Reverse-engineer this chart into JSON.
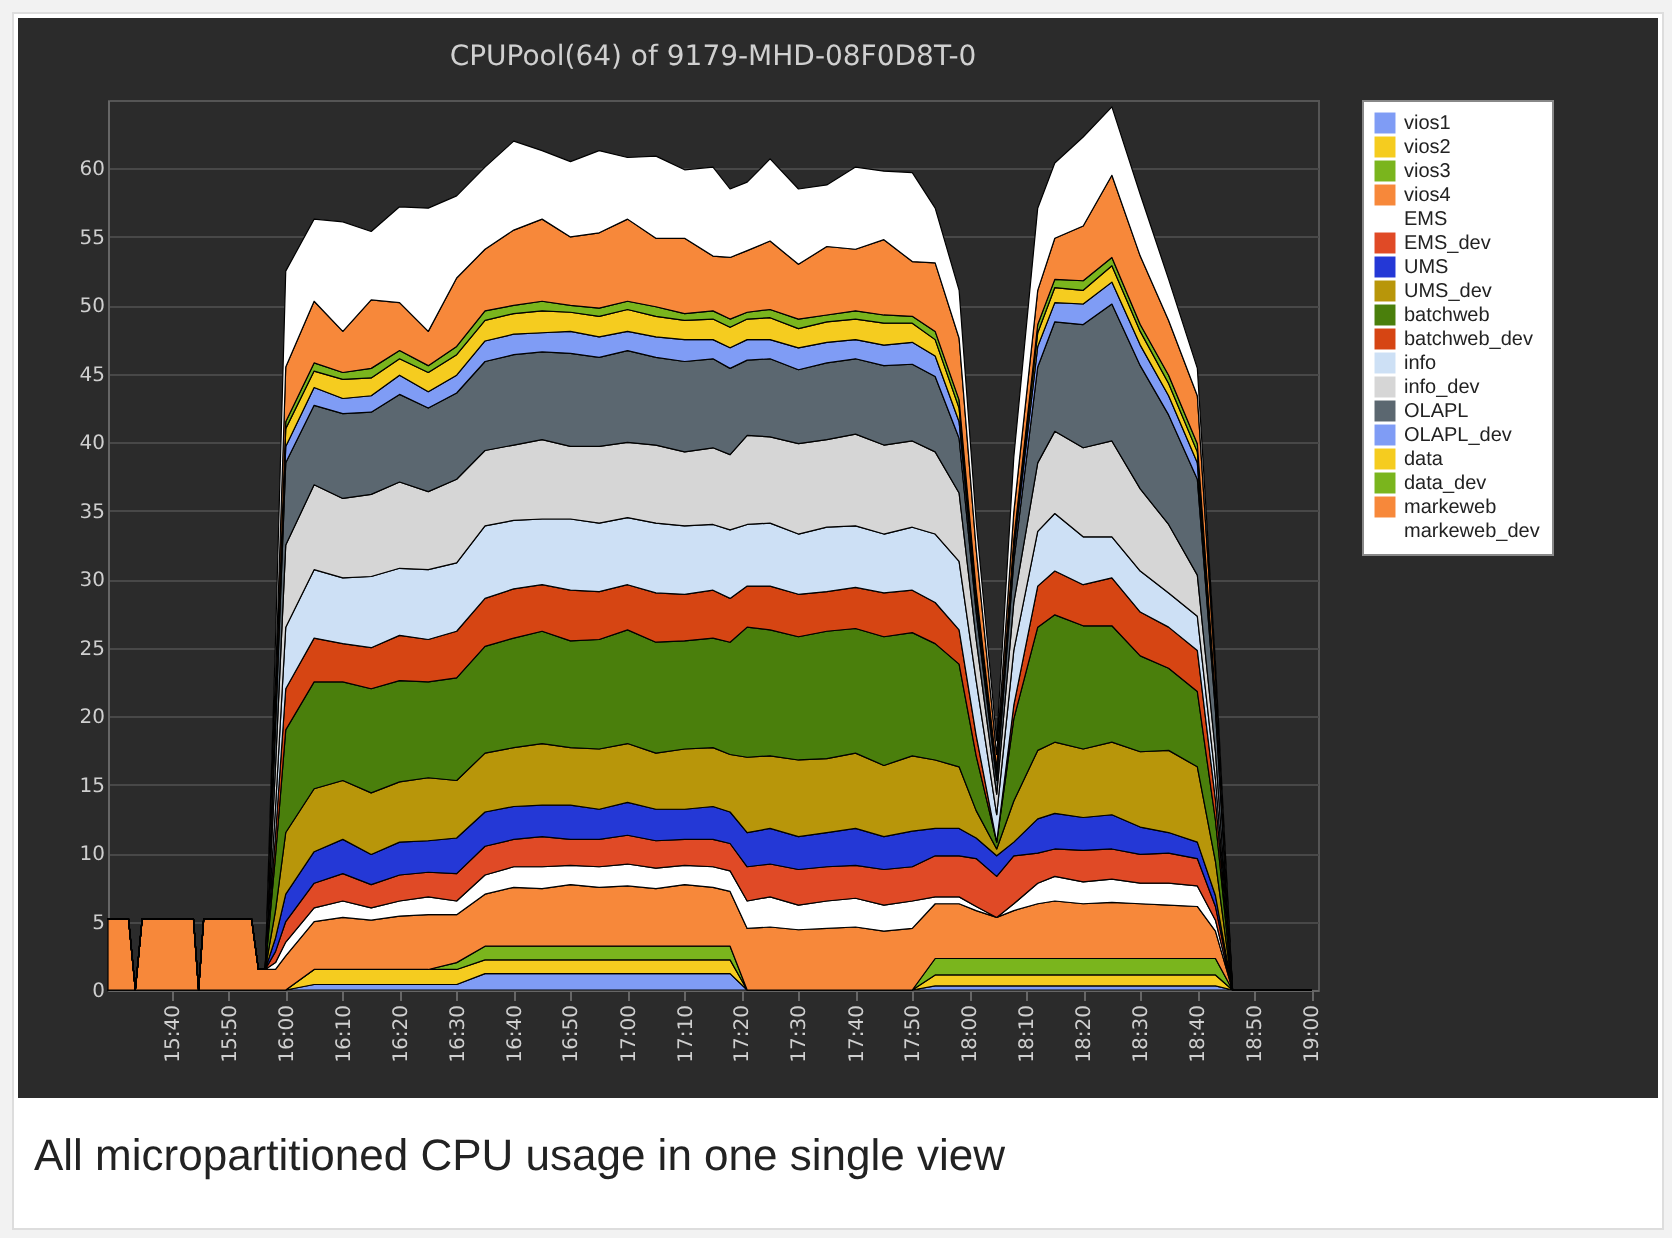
{
  "chart_data": {
    "type": "area",
    "stacked": true,
    "title": "CPUPool(64) of 9179-MHD-08F0D8T-0",
    "annotations": [
      "All micropartitioned CPU usage in one single view"
    ],
    "x": [
      15.48,
      15.54,
      15.56,
      15.58,
      15.73,
      15.745,
      15.76,
      15.9,
      15.92,
      15.94,
      15.97,
      16.0,
      16.083,
      16.167,
      16.25,
      16.333,
      16.417,
      16.5,
      16.583,
      16.667,
      16.75,
      16.833,
      16.917,
      17.0,
      17.083,
      17.167,
      17.25,
      17.3,
      17.35,
      17.417,
      17.5,
      17.583,
      17.667,
      17.75,
      17.833,
      17.9,
      17.97,
      18.02,
      18.08,
      18.13,
      18.2,
      18.25,
      18.333,
      18.417,
      18.5,
      18.583,
      18.667,
      18.72,
      18.77,
      19.0
    ],
    "xlim": [
      15.48,
      19.02
    ],
    "ylim": [
      0,
      65
    ],
    "xticks": [
      {
        "value": 15.667,
        "label": "15:40"
      },
      {
        "value": 15.833,
        "label": "15:50"
      },
      {
        "value": 16,
        "label": "16:00"
      },
      {
        "value": 16.167,
        "label": "16:10"
      },
      {
        "value": 16.333,
        "label": "16:20"
      },
      {
        "value": 16.5,
        "label": "16:30"
      },
      {
        "value": 16.667,
        "label": "16:40"
      },
      {
        "value": 16.833,
        "label": "16:50"
      },
      {
        "value": 17,
        "label": "17:00"
      },
      {
        "value": 17.167,
        "label": "17:10"
      },
      {
        "value": 17.333,
        "label": "17:20"
      },
      {
        "value": 17.5,
        "label": "17:30"
      },
      {
        "value": 17.667,
        "label": "17:40"
      },
      {
        "value": 17.833,
        "label": "17:50"
      },
      {
        "value": 18,
        "label": "18:00"
      },
      {
        "value": 18.167,
        "label": "18:10"
      },
      {
        "value": 18.333,
        "label": "18:20"
      },
      {
        "value": 18.5,
        "label": "18:30"
      },
      {
        "value": 18.667,
        "label": "18:40"
      },
      {
        "value": 18.833,
        "label": "18:50"
      },
      {
        "value": 19,
        "label": "19:00"
      }
    ],
    "yticks": [
      0,
      5,
      10,
      15,
      20,
      25,
      30,
      35,
      40,
      45,
      50,
      55,
      60
    ],
    "grid": "y",
    "legend": "right",
    "series": [
      {
        "name": "vios1",
        "color": "#7f9cf5",
        "values": [
          0,
          0,
          0,
          0,
          0,
          0,
          0,
          0,
          0,
          0,
          0,
          0,
          0.4,
          0.4,
          0.4,
          0.4,
          0.4,
          0.4,
          1.2,
          1.2,
          1.2,
          1.2,
          1.2,
          1.2,
          1.2,
          1.2,
          1.2,
          1.2,
          0,
          0,
          0,
          0,
          0,
          0,
          0,
          0.3,
          0.3,
          0.3,
          0.3,
          0.3,
          0.3,
          0.3,
          0.3,
          0.3,
          0.3,
          0.3,
          0.3,
          0.3,
          0,
          0
        ]
      },
      {
        "name": "vios2",
        "color": "#f5cc1f",
        "values": [
          0,
          0,
          0,
          0,
          0,
          0,
          0,
          0,
          0,
          0,
          0,
          0,
          1.1,
          1.1,
          1.1,
          1.1,
          1.1,
          1.1,
          1,
          1,
          1,
          1,
          1,
          1,
          1,
          1,
          1,
          1,
          0,
          0,
          0,
          0,
          0,
          0,
          0,
          0.8,
          0.8,
          0.8,
          0.8,
          0.8,
          0.8,
          0.8,
          0.8,
          0.8,
          0.8,
          0.8,
          0.8,
          0.8,
          0,
          0
        ]
      },
      {
        "name": "vios3",
        "color": "#7ab51d",
        "values": [
          0,
          0,
          0,
          0,
          0,
          0,
          0,
          0,
          0,
          0,
          0,
          0,
          0,
          0,
          0,
          0,
          0,
          0.5,
          1,
          1,
          1,
          1,
          1,
          1,
          1,
          1,
          1,
          1,
          0,
          0,
          0,
          0,
          0,
          0,
          0,
          1.2,
          1.2,
          1.2,
          1.2,
          1.2,
          1.2,
          1.2,
          1.2,
          1.2,
          1.2,
          1.2,
          1.2,
          1.2,
          0,
          0
        ]
      },
      {
        "name": "vios4",
        "color": "#f7883a",
        "values": [
          5.2,
          5.2,
          0,
          5.2,
          5.2,
          0,
          5.2,
          5.2,
          1.5,
          1.5,
          1.5,
          2.5,
          3.5,
          3.8,
          3.6,
          3.9,
          4,
          3.5,
          3.8,
          4.3,
          4.2,
          4.5,
          4.3,
          4.4,
          4.2,
          4.5,
          4.3,
          4,
          4.5,
          4.6,
          4.4,
          4.5,
          4.6,
          4.3,
          4.5,
          4,
          4,
          3.5,
          3,
          3.5,
          4,
          4.2,
          4,
          4.1,
          4,
          3.9,
          3.8,
          2,
          0,
          0
        ]
      },
      {
        "name": "EMS",
        "color": "#ffffff",
        "values": [
          0,
          0,
          0,
          0,
          0,
          0,
          0,
          0,
          0,
          0,
          0.5,
          1,
          1,
          1.2,
          0.9,
          1.1,
          1.3,
          1,
          1.4,
          1.5,
          1.6,
          1.4,
          1.5,
          1.6,
          1.5,
          1.4,
          1.5,
          1.5,
          2,
          2.2,
          1.8,
          2,
          2.1,
          1.9,
          2,
          0.5,
          0.5,
          0.3,
          0,
          0.5,
          1.5,
          1.8,
          1.6,
          1.7,
          1.5,
          1.6,
          1.5,
          0.8,
          0,
          0
        ]
      },
      {
        "name": "EMS_dev",
        "color": "#e04a26",
        "values": [
          0,
          0,
          0,
          0,
          0,
          0,
          0,
          0,
          0,
          0,
          0.8,
          1.5,
          1.8,
          2,
          1.7,
          1.9,
          1.8,
          2,
          2.1,
          2,
          2.2,
          1.9,
          2,
          2.1,
          2,
          1.9,
          2,
          2,
          2.5,
          2.4,
          2.6,
          2.5,
          2.4,
          2.6,
          2.5,
          3,
          3,
          3.5,
          3,
          3.5,
          2.2,
          2,
          2.3,
          2.2,
          2.1,
          2.2,
          2,
          1,
          0,
          0
        ]
      },
      {
        "name": "UMS",
        "color": "#2438d6",
        "values": [
          0,
          0,
          0,
          0,
          0,
          0,
          0,
          0,
          0,
          0,
          1,
          2,
          2.3,
          2.5,
          2.2,
          2.4,
          2.3,
          2.6,
          2.5,
          2.4,
          2.3,
          2.5,
          2.2,
          2.4,
          2.3,
          2.2,
          2.4,
          2.3,
          2.5,
          2.6,
          2.4,
          2.5,
          2.7,
          2.4,
          2.6,
          2,
          2,
          1.5,
          1.5,
          1,
          2.5,
          2.6,
          2.4,
          2.5,
          2,
          1.5,
          1.2,
          0.8,
          0,
          0
        ]
      },
      {
        "name": "UMS_dev",
        "color": "#b8960a",
        "values": [
          0,
          0,
          0,
          0,
          0,
          0,
          0,
          0,
          0,
          0,
          2,
          4.5,
          4.6,
          4.3,
          4.5,
          4.4,
          4.6,
          4.2,
          4.3,
          4.3,
          4.5,
          4.2,
          4.4,
          4.3,
          4.1,
          4.4,
          4.3,
          4.2,
          5.5,
          5.3,
          5.6,
          5.4,
          5.5,
          5.2,
          5.5,
          5,
          4.5,
          2,
          0.5,
          3,
          5,
          5.2,
          5,
          5.3,
          5.5,
          6,
          5.5,
          2.5,
          0,
          0
        ]
      },
      {
        "name": "batchweb",
        "color": "#4a7f0c",
        "values": [
          0,
          0,
          0,
          0,
          0,
          0,
          0,
          0,
          0,
          0,
          4,
          7.5,
          7.8,
          7.2,
          7.6,
          7.4,
          7,
          7.5,
          7.8,
          8,
          8.2,
          7.8,
          8,
          8.3,
          8.1,
          7.9,
          8,
          8.2,
          9.5,
          9.2,
          9,
          9.3,
          9.1,
          9.4,
          9,
          8.5,
          7.5,
          4,
          0.5,
          6,
          9,
          9.3,
          9,
          8.5,
          7,
          6,
          5.5,
          3,
          0,
          0
        ]
      },
      {
        "name": "batchweb_dev",
        "color": "#d64513",
        "values": [
          0,
          0,
          0,
          0,
          0,
          0,
          0,
          0,
          0,
          0,
          1.5,
          3,
          3.2,
          2.8,
          3,
          3.3,
          3.1,
          3.4,
          3.5,
          3.6,
          3.4,
          3.7,
          3.5,
          3.3,
          3.6,
          3.4,
          3.5,
          3.2,
          3,
          3.2,
          3.1,
          2.9,
          3,
          3.2,
          3.1,
          3,
          2.5,
          1.5,
          0,
          1,
          3,
          3.2,
          3,
          3.5,
          3.2,
          3,
          3,
          1.5,
          0,
          0
        ]
      },
      {
        "name": "info",
        "color": "#cde0f5",
        "values": [
          0,
          0,
          0,
          0,
          0,
          0,
          0,
          0,
          0,
          0,
          2,
          4.5,
          5,
          4.8,
          5.2,
          4.9,
          5.1,
          5,
          5.3,
          5,
          4.8,
          5.2,
          5,
          4.9,
          5.1,
          5,
          4.8,
          5,
          4.5,
          4.6,
          4.4,
          4.7,
          4.5,
          4.3,
          4.6,
          5,
          5,
          4,
          2,
          4,
          4,
          4.2,
          3.5,
          3,
          3,
          2.5,
          2.5,
          1.5,
          0,
          0
        ]
      },
      {
        "name": "info_dev",
        "color": "#d6d6d6",
        "values": [
          0,
          0,
          0,
          0,
          0,
          0,
          0,
          0,
          0,
          0,
          3,
          6,
          6.2,
          5.8,
          6,
          6.3,
          5.7,
          6.1,
          5.5,
          5.5,
          5.8,
          5.3,
          5.6,
          5.5,
          5.7,
          5.4,
          5.6,
          5.5,
          6.5,
          6.3,
          6.6,
          6.4,
          6.7,
          6.5,
          6.3,
          6,
          5,
          3,
          1.5,
          3.5,
          5,
          6,
          6.5,
          7,
          6,
          5,
          3,
          2,
          0,
          0
        ]
      },
      {
        "name": "OLAPL",
        "color": "#5b6770",
        "values": [
          0,
          0,
          0,
          0,
          0,
          0,
          0,
          0,
          0,
          0,
          3,
          6,
          5.8,
          6.2,
          6,
          6.4,
          6.1,
          6.3,
          6.5,
          6.6,
          6.4,
          6.8,
          6.5,
          6.7,
          6.4,
          6.6,
          6.5,
          6.3,
          5.5,
          5.7,
          5.4,
          5.6,
          5.5,
          5.8,
          5.6,
          5.5,
          4,
          2,
          1,
          3,
          7,
          8,
          9,
          10,
          9,
          8,
          7,
          3,
          0,
          0
        ]
      },
      {
        "name": "OLAPL_dev",
        "color": "#7f9cf5",
        "values": [
          0,
          0,
          0,
          0,
          0,
          0,
          0,
          0,
          0,
          0,
          0.5,
          1.2,
          1.3,
          1.1,
          1.2,
          1.4,
          1.2,
          1.3,
          1.5,
          1.5,
          1.4,
          1.6,
          1.5,
          1.4,
          1.5,
          1.6,
          1.4,
          1.5,
          1.5,
          1.4,
          1.6,
          1.5,
          1.4,
          1.5,
          1.6,
          1.5,
          1.2,
          0.8,
          0.5,
          0.8,
          1.5,
          1.4,
          1.5,
          1.6,
          1.5,
          1.4,
          1.2,
          0.5,
          0,
          0
        ]
      },
      {
        "name": "data",
        "color": "#f5cc1f",
        "values": [
          0,
          0,
          0,
          0,
          0,
          0,
          0,
          0,
          0,
          0,
          0.5,
          1.3,
          1.2,
          1.4,
          1.3,
          1.2,
          1.4,
          1.5,
          1.5,
          1.5,
          1.6,
          1.4,
          1.5,
          1.6,
          1.5,
          1.4,
          1.5,
          1.5,
          1.5,
          1.6,
          1.4,
          1.5,
          1.5,
          1.6,
          1.4,
          1.2,
          1,
          0.5,
          0.3,
          0.5,
          1,
          1.1,
          1,
          1.2,
          1,
          0.9,
          0.8,
          0.3,
          0,
          0
        ]
      },
      {
        "name": "data_dev",
        "color": "#7ab51d",
        "values": [
          0,
          0,
          0,
          0,
          0,
          0,
          0,
          0,
          0,
          0,
          0.2,
          0.5,
          0.6,
          0.5,
          0.7,
          0.6,
          0.5,
          0.6,
          0.7,
          0.6,
          0.7,
          0.5,
          0.6,
          0.6,
          0.7,
          0.5,
          0.6,
          0.6,
          0.5,
          0.6,
          0.7,
          0.5,
          0.6,
          0.6,
          0.5,
          0.6,
          0.6,
          0.3,
          0.1,
          0.3,
          0.6,
          0.6,
          0.7,
          0.6,
          0.5,
          0.6,
          0.6,
          0.2,
          0,
          0
        ]
      },
      {
        "name": "markeweb",
        "color": "#f7883a",
        "values": [
          0,
          0,
          0,
          0,
          0,
          0,
          0,
          0,
          0,
          0,
          2,
          4,
          4.5,
          3,
          5,
          3.5,
          2.5,
          5,
          4.5,
          5.5,
          6,
          5,
          5.5,
          6,
          5,
          5.5,
          4,
          4.5,
          4.5,
          5,
          4,
          5,
          4.5,
          5.5,
          4,
          5,
          4.5,
          3,
          1,
          2,
          2.5,
          3,
          4,
          6,
          5,
          4,
          3.5,
          1.5,
          0,
          0
        ]
      },
      {
        "name": "markeweb_dev",
        "color": "#ffffff",
        "values": [
          0,
          0,
          0,
          0,
          0,
          0,
          0,
          0,
          0,
          0,
          3,
          7,
          6,
          8,
          5,
          7,
          9,
          6,
          6,
          6.5,
          5,
          5.5,
          6,
          4.5,
          6,
          5,
          6.5,
          5,
          5,
          6,
          5.5,
          4.5,
          6,
          5,
          6.5,
          4,
          3.5,
          2,
          1,
          4,
          6,
          5.5,
          6.5,
          5,
          4.5,
          3,
          2,
          1,
          0,
          0
        ]
      }
    ]
  }
}
